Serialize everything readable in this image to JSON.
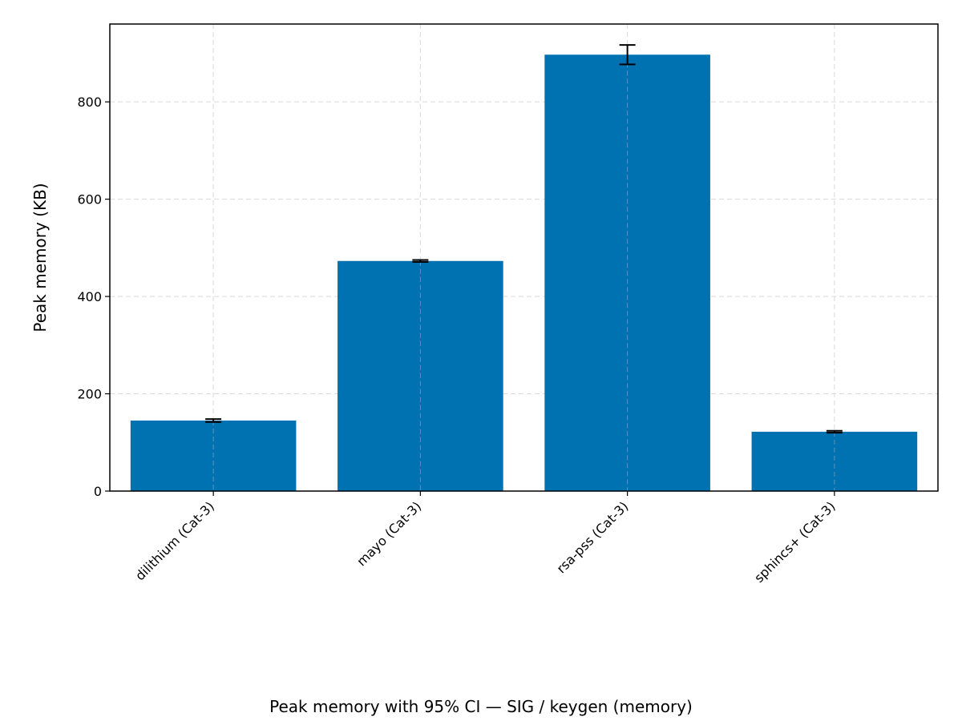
{
  "chart_data": {
    "type": "bar",
    "categories": [
      "dilithium (Cat-3)",
      "mayo (Cat-3)",
      "rsa-pss (Cat-3)",
      "sphincs+ (Cat-3)"
    ],
    "values": [
      145,
      473,
      897,
      122
    ],
    "ci_low": [
      142,
      471,
      877,
      120
    ],
    "ci_high": [
      148,
      475,
      917,
      124
    ],
    "ylabel": "Peak memory (KB)",
    "xlabel": "",
    "caption": "Peak memory with 95% CI — SIG / keygen (memory)",
    "ylim": [
      0,
      960
    ],
    "yticks": [
      0,
      200,
      400,
      600,
      800
    ],
    "grid": true,
    "bar_color": "#0072B2",
    "errorbar_color": "#000000"
  }
}
